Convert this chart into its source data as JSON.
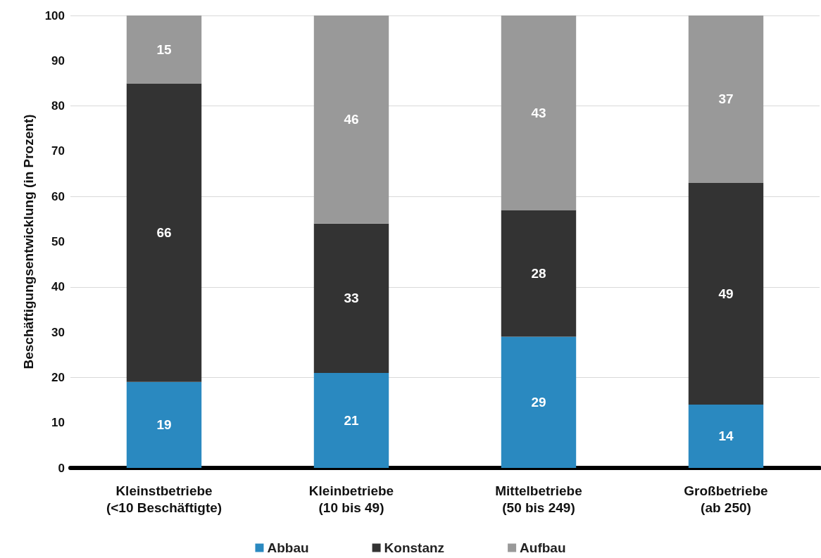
{
  "chart_data": {
    "type": "bar",
    "stacked": true,
    "ylabel": "Beschäftigungsentwicklung (in Prozent)",
    "categories": [
      "Kleinstbetriebe\n(<10 Beschäftigte)",
      "Kleinbetriebe\n(10 bis 49)",
      "Mittelbetriebe\n(50 bis 249)",
      "Großbetriebe\n(ab 250)"
    ],
    "series": [
      {
        "name": "Abbau",
        "color": "#2a89c0",
        "values": [
          19,
          21,
          29,
          14
        ]
      },
      {
        "name": "Konstanz",
        "color": "#333333",
        "values": [
          66,
          33,
          28,
          49
        ]
      },
      {
        "name": "Aufbau",
        "color": "#999999",
        "values": [
          15,
          46,
          43,
          37
        ]
      }
    ],
    "ylim": [
      0,
      100
    ],
    "yticks": [
      0,
      10,
      20,
      30,
      40,
      50,
      60,
      70,
      80,
      90,
      100
    ],
    "grid": "y",
    "legend": "bottom",
    "data_labels": true
  }
}
